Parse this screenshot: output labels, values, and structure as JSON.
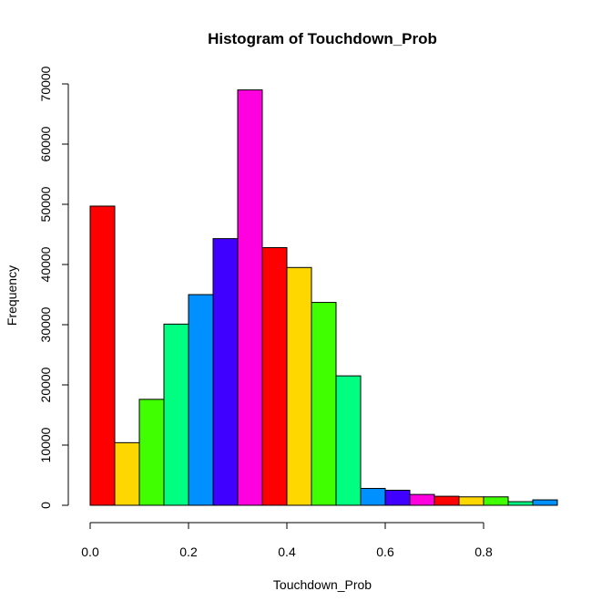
{
  "chart_data": {
    "type": "bar",
    "title": "Histogram of Touchdown_Prob",
    "xlabel": "Touchdown_Prob",
    "ylabel": "Frequency",
    "bin_width": 0.05,
    "bins_start": [
      0.0,
      0.05,
      0.1,
      0.15,
      0.2,
      0.25,
      0.3,
      0.35,
      0.4,
      0.45,
      0.5,
      0.55,
      0.6,
      0.65,
      0.7,
      0.75,
      0.8,
      0.85,
      0.9
    ],
    "values": [
      49700,
      10400,
      17600,
      30100,
      35000,
      44300,
      69000,
      42800,
      39500,
      33700,
      21500,
      2800,
      2500,
      1800,
      1500,
      1400,
      1400,
      600,
      900
    ],
    "colors": [
      "#FF0000",
      "#FFD700",
      "#40FF00",
      "#00FF80",
      "#0090FF",
      "#4000FF",
      "#FF00DF",
      "#FF0000",
      "#FFD700",
      "#40FF00",
      "#00FF80",
      "#0090FF",
      "#4000FF",
      "#FF00DF",
      "#FF0000",
      "#FFD700",
      "#40FF00",
      "#00FF80",
      "#0090FF"
    ],
    "xlim": [
      0.0,
      0.95
    ],
    "ylim": [
      0,
      70000
    ],
    "x_ticks": [
      0.0,
      0.2,
      0.4,
      0.6,
      0.8
    ],
    "x_tick_labels": [
      "0.0",
      "0.2",
      "0.4",
      "0.6",
      "0.8"
    ],
    "y_ticks": [
      0,
      10000,
      20000,
      30000,
      40000,
      50000,
      60000,
      70000
    ],
    "y_tick_labels": [
      "0",
      "10000",
      "20000",
      "30000",
      "40000",
      "50000",
      "60000",
      "70000"
    ],
    "grid": false
  }
}
